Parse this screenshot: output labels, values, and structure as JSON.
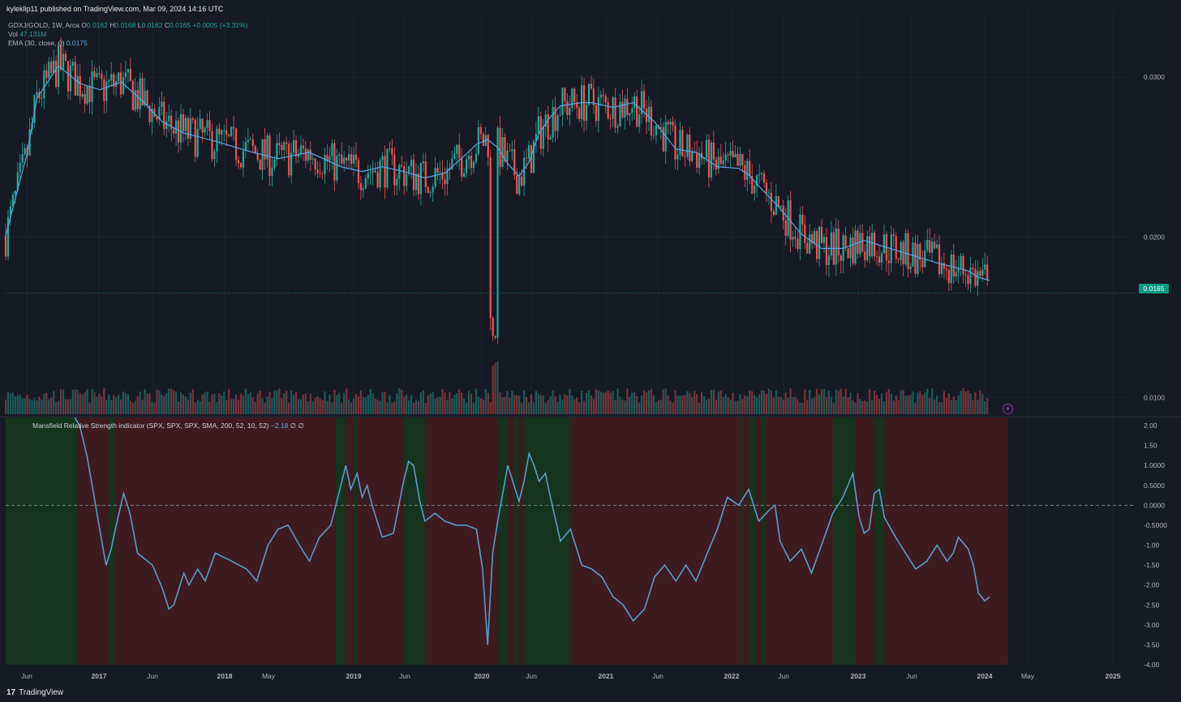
{
  "header": {
    "published": "kyleklip11 published on TradingView.com, Mar 09, 2024 14:16 UTC"
  },
  "legend": {
    "symbol": "GDXJ/GOLD, 1W, Arca",
    "open_label": "O",
    "open": "0.0162",
    "high_label": "H",
    "high": "0.0168",
    "low_label": "L",
    "low": "0.0162",
    "close_label": "C",
    "close": "0.0165",
    "change": "+0.0005 (+3.31%)",
    "vol_label": "Vol",
    "vol_value": "47.131M",
    "ema_label": "EMA (30, close, 0)",
    "ema_value": "0.0175"
  },
  "indicator": {
    "title": "Mansfield Relative Strength indicator (SPX, SPX, SPX, SMA, 200, 52, 10, 52)",
    "value": "−2.18",
    "extra": "∅  ∅"
  },
  "price_badge": "0.0165",
  "footer": {
    "brand": "TradingView",
    "logo": "17"
  },
  "colors": {
    "background": "#161a25",
    "up": "#26a69a",
    "down": "#ef5350",
    "ema": "#5aa6e6",
    "rs_line": "#5b9bc4",
    "zone_green": "#16331f",
    "zone_red": "#3d1b21",
    "grid": "#232733"
  },
  "chart_data": [
    {
      "type": "candlestick",
      "title": "GDXJ/GOLD, 1W, Arca",
      "series": [
        {
          "name": "EMA (30, close, 0)",
          "x": [
            2016.33,
            2016.5,
            2016.58,
            2016.75,
            2016.92,
            2017.08,
            2017.25,
            2017.42,
            2017.58,
            2017.75,
            2018.0,
            2018.25,
            2018.5,
            2018.75,
            2019.0,
            2019.17,
            2019.33,
            2019.5,
            2019.67,
            2019.83,
            2020.0,
            2020.08,
            2020.17,
            2020.25,
            2020.33,
            2020.42,
            2020.5,
            2020.58,
            2020.67,
            2020.75,
            2020.92,
            2021.0,
            2021.17,
            2021.33,
            2021.5,
            2021.67,
            2021.83,
            2022.0,
            2022.17,
            2022.25,
            2022.33,
            2022.5,
            2022.67,
            2022.83,
            2023.0,
            2023.17,
            2023.25,
            2023.5,
            2023.75,
            2024.0,
            2024.08,
            2024.17
          ],
          "y": [
            0.0201,
            0.0252,
            0.0287,
            0.0307,
            0.0296,
            0.0292,
            0.0297,
            0.0285,
            0.0272,
            0.0265,
            0.026,
            0.0254,
            0.0249,
            0.0253,
            0.0244,
            0.0241,
            0.0244,
            0.0241,
            0.0237,
            0.024,
            0.0252,
            0.0258,
            0.0261,
            0.0256,
            0.0246,
            0.0238,
            0.0247,
            0.0265,
            0.0275,
            0.0282,
            0.0284,
            0.0284,
            0.0281,
            0.0284,
            0.0272,
            0.0255,
            0.0253,
            0.0244,
            0.0243,
            0.0239,
            0.0232,
            0.0218,
            0.0202,
            0.0193,
            0.0193,
            0.0198,
            0.0196,
            0.019,
            0.0184,
            0.0179,
            0.0175,
            0.0173
          ]
        }
      ],
      "last_close": 0.0165,
      "y_ticks": [
        "0.0300",
        "0.0200",
        "0.0100"
      ],
      "ylim": [
        0.0089,
        0.0341
      ],
      "x_ticks": [
        "Jun",
        "2017",
        "Jun",
        "2018",
        "May",
        "2019",
        "Jun",
        "2020",
        "Jun",
        "2021",
        "Jun",
        "2022",
        "Jun",
        "2023",
        "Jun",
        "2024",
        "May",
        "2025"
      ],
      "volume_series": "Vol",
      "grid": true
    },
    {
      "type": "line",
      "title": "Mansfield Relative Strength indicator (SPX, SPX, SPX, SMA, 200, 52, 10, 52)",
      "x": [
        2016.88,
        2016.92,
        2016.98,
        2017.03,
        2017.09,
        2017.13,
        2017.17,
        2017.21,
        2017.27,
        2017.32,
        2017.38,
        2017.46,
        2017.5,
        2017.58,
        2017.63,
        2017.67,
        2017.75,
        2017.79,
        2017.86,
        2017.92,
        2018.0,
        2018.13,
        2018.25,
        2018.33,
        2018.42,
        2018.5,
        2018.58,
        2018.67,
        2018.75,
        2018.83,
        2018.92,
        2019.0,
        2019.04,
        2019.08,
        2019.13,
        2019.17,
        2019.21,
        2019.25,
        2019.33,
        2019.42,
        2019.5,
        2019.54,
        2019.58,
        2019.63,
        2019.67,
        2019.75,
        2019.83,
        2019.92,
        2020.0,
        2020.08,
        2020.13,
        2020.17,
        2020.21,
        2020.25,
        2020.33,
        2020.42,
        2020.46,
        2020.5,
        2020.54,
        2020.58,
        2020.63,
        2020.67,
        2020.75,
        2020.83,
        2020.88,
        2020.92,
        2021.0,
        2021.08,
        2021.17,
        2021.25,
        2021.33,
        2021.42,
        2021.5,
        2021.58,
        2021.67,
        2021.75,
        2021.83,
        2021.92,
        2022.0,
        2022.08,
        2022.17,
        2022.25,
        2022.33,
        2022.42,
        2022.46,
        2022.5,
        2022.58,
        2022.67,
        2022.75,
        2022.83,
        2022.92,
        2023.0,
        2023.04,
        2023.08,
        2023.13,
        2023.17,
        2023.21,
        2023.25,
        2023.29,
        2023.33,
        2023.42,
        2023.5,
        2023.58,
        2023.67,
        2023.75,
        2023.83,
        2023.88,
        2023.92,
        2024.0,
        2024.04,
        2024.08,
        2024.13,
        2024.17
      ],
      "y": [
        2.2,
        2.0,
        1.2,
        0.3,
        -0.8,
        -1.5,
        -1.1,
        -0.5,
        0.3,
        -0.2,
        -1.2,
        -1.4,
        -1.5,
        -2.1,
        -2.6,
        -2.5,
        -1.7,
        -2.0,
        -1.6,
        -1.9,
        -1.2,
        -1.4,
        -1.6,
        -1.9,
        -1.0,
        -0.6,
        -0.5,
        -1.0,
        -1.4,
        -0.8,
        -0.5,
        0.5,
        1.0,
        0.4,
        0.8,
        0.2,
        0.5,
        0.0,
        -0.8,
        -0.7,
        0.6,
        1.1,
        1.0,
        0.1,
        -0.4,
        -0.2,
        -0.4,
        -0.5,
        -0.5,
        -0.6,
        -1.6,
        -3.5,
        -1.2,
        -0.4,
        1.0,
        0.1,
        0.6,
        1.3,
        1.0,
        0.6,
        0.8,
        0.2,
        -0.9,
        -0.6,
        -1.1,
        -1.5,
        -1.6,
        -1.8,
        -2.3,
        -2.5,
        -2.9,
        -2.6,
        -1.8,
        -1.5,
        -1.9,
        -1.5,
        -1.9,
        -1.2,
        -0.6,
        0.2,
        0.0,
        0.4,
        -0.4,
        -0.1,
        0.0,
        -0.9,
        -1.4,
        -1.1,
        -1.7,
        -1.0,
        -0.2,
        0.2,
        0.5,
        0.8,
        -0.3,
        -0.7,
        -0.6,
        0.3,
        0.4,
        -0.3,
        -0.8,
        -1.2,
        -1.6,
        -1.4,
        -1.0,
        -1.4,
        -1.2,
        -0.8,
        -1.1,
        -1.5,
        -2.2,
        -2.4,
        -2.3
      ],
      "zero_line": 0,
      "zones": [
        {
          "start": 2016.33,
          "end": 2016.9,
          "state": "positive"
        },
        {
          "start": 2017.15,
          "end": 2017.2,
          "state": "positive"
        },
        {
          "start": 2018.96,
          "end": 2019.04,
          "state": "positive"
        },
        {
          "start": 2019.1,
          "end": 2019.13,
          "state": "positive"
        },
        {
          "start": 2019.5,
          "end": 2019.67,
          "state": "positive"
        },
        {
          "start": 2020.25,
          "end": 2020.33,
          "state": "positive"
        },
        {
          "start": 2020.38,
          "end": 2020.42,
          "state": "positive"
        },
        {
          "start": 2020.46,
          "end": 2020.83,
          "state": "positive"
        },
        {
          "start": 2022.18,
          "end": 2022.2,
          "state": "positive"
        },
        {
          "start": 2022.25,
          "end": 2022.3,
          "state": "positive"
        },
        {
          "start": 2022.35,
          "end": 2022.38,
          "state": "positive"
        },
        {
          "start": 2022.92,
          "end": 2023.1,
          "state": "positive"
        },
        {
          "start": 2023.25,
          "end": 2023.33,
          "state": "positive"
        }
      ],
      "y_ticks": [
        "2.00",
        "1.50",
        "1.0000",
        "0.5000",
        "0.0000",
        "-0.5000",
        "-1.00",
        "-1.50",
        "-2.00",
        "-2.50",
        "-3.00",
        "-3.50",
        "-4.00"
      ],
      "ylim": [
        -4.0,
        2.0
      ]
    }
  ]
}
